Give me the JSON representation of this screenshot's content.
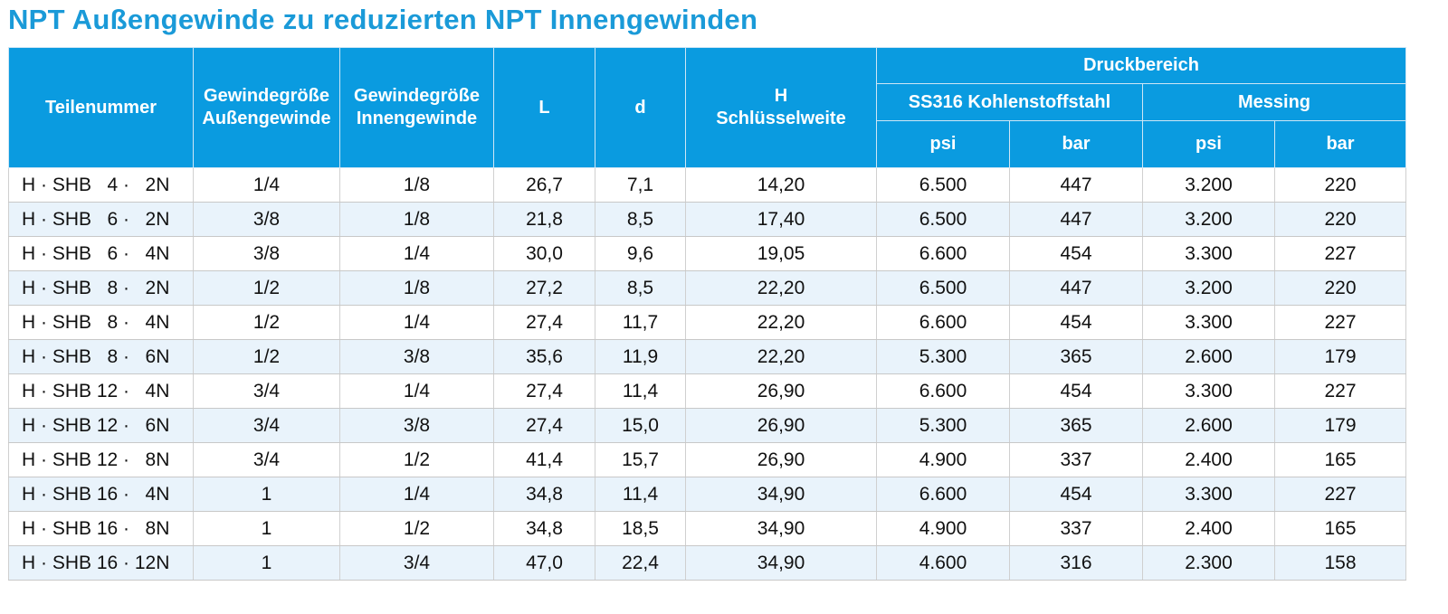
{
  "title": "NPT Außengewinde zu reduzierten NPT Innengewinden",
  "table": {
    "headers": {
      "part": "Teilenummer",
      "outer_l1": "Gewindegröße",
      "outer_l2": "Außengewinde",
      "inner_l1": "Gewindegröße",
      "inner_l2": "Innengewinde",
      "L": "L",
      "d": "d",
      "H_l1": "H",
      "H_l2": "Schlüsselweite",
      "pressure": "Druckbereich",
      "steel": "SS316 Kohlenstoffstahl",
      "brass": "Messing",
      "psi": "psi",
      "bar": "bar"
    },
    "rows": [
      [
        "H · SHB   4 ·   2N",
        "1/4",
        "1/8",
        "26,7",
        "7,1",
        "14,20",
        "6.500",
        "447",
        "3.200",
        "220"
      ],
      [
        "H · SHB   6 ·   2N",
        "3/8",
        "1/8",
        "21,8",
        "8,5",
        "17,40",
        "6.500",
        "447",
        "3.200",
        "220"
      ],
      [
        "H · SHB   6 ·   4N",
        "3/8",
        "1/4",
        "30,0",
        "9,6",
        "19,05",
        "6.600",
        "454",
        "3.300",
        "227"
      ],
      [
        "H · SHB   8 ·   2N",
        "1/2",
        "1/8",
        "27,2",
        "8,5",
        "22,20",
        "6.500",
        "447",
        "3.200",
        "220"
      ],
      [
        "H · SHB   8 ·   4N",
        "1/2",
        "1/4",
        "27,4",
        "11,7",
        "22,20",
        "6.600",
        "454",
        "3.300",
        "227"
      ],
      [
        "H · SHB   8 ·   6N",
        "1/2",
        "3/8",
        "35,6",
        "11,9",
        "22,20",
        "5.300",
        "365",
        "2.600",
        "179"
      ],
      [
        "H · SHB 12 ·   4N",
        "3/4",
        "1/4",
        "27,4",
        "11,4",
        "26,90",
        "6.600",
        "454",
        "3.300",
        "227"
      ],
      [
        "H · SHB 12 ·   6N",
        "3/4",
        "3/8",
        "27,4",
        "15,0",
        "26,90",
        "5.300",
        "365",
        "2.600",
        "179"
      ],
      [
        "H · SHB 12 ·   8N",
        "3/4",
        "1/2",
        "41,4",
        "15,7",
        "26,90",
        "4.900",
        "337",
        "2.400",
        "165"
      ],
      [
        "H · SHB 16 ·   4N",
        "1",
        "1/4",
        "34,8",
        "11,4",
        "34,90",
        "6.600",
        "454",
        "3.300",
        "227"
      ],
      [
        "H · SHB 16 ·   8N",
        "1",
        "1/2",
        "34,8",
        "18,5",
        "34,90",
        "4.900",
        "337",
        "2.400",
        "165"
      ],
      [
        "H · SHB 16 · 12N",
        "1",
        "3/4",
        "47,0",
        "22,4",
        "34,90",
        "4.600",
        "316",
        "2.300",
        "158"
      ]
    ]
  },
  "colors": {
    "header_bg": "#0a9be0",
    "title": "#1a9ad8",
    "alt_row": "#e9f3fb"
  }
}
